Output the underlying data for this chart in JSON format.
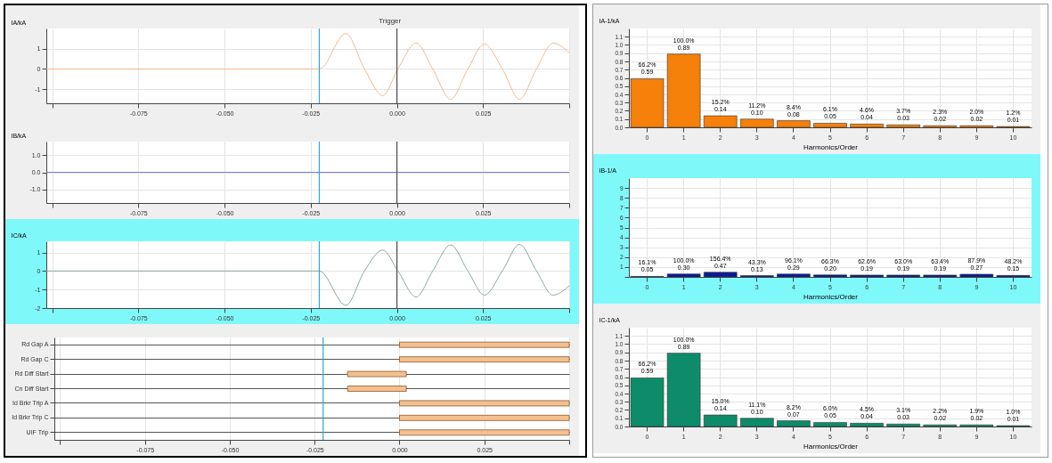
{
  "chart_data": [
    {
      "type": "line",
      "ylabel": "IA/kA",
      "color": "#f5b88a",
      "grid": true,
      "x": [
        -0.1017,
        -0.0225,
        -0.0148,
        -0.0094,
        -0.0041,
        0.0003,
        0.0056,
        0.0104,
        0.0156,
        0.0206,
        0.0254,
        0.0306,
        0.0356,
        0.0405,
        0.0453,
        0.05
      ],
      "values": [
        0,
        0,
        1.75,
        0,
        -1.32,
        0,
        1.28,
        0,
        -1.5,
        0,
        1.23,
        0,
        -1.5,
        0,
        1.28,
        0.8
      ],
      "xlim": [
        -0.1017,
        0.05
      ],
      "xticks": [
        {
          "value": -0.1,
          "label": null
        },
        {
          "value": -0.075,
          "label": "-0.075"
        },
        {
          "value": -0.05,
          "label": "-0.050"
        },
        {
          "value": -0.025,
          "label": "-0.025"
        },
        {
          "value": 0,
          "label": "0.000"
        },
        {
          "value": 0.025,
          "label": "0.025"
        },
        {
          "value": 0.05,
          "label": null
        }
      ],
      "ylim": [
        -1.7,
        2.0
      ],
      "yticks": [
        1,
        0,
        -1
      ],
      "ref_lines": [
        {
          "axis": "x",
          "value": -0.0225,
          "color": "#2aa8d8"
        },
        {
          "axis": "x",
          "value": 0,
          "color": "#555555"
        }
      ],
      "annotations": [
        "Trigger"
      ]
    },
    {
      "type": "line",
      "ylabel": "IB/kA",
      "color": "#7b7bdb",
      "grid": true,
      "x": [
        -0.1017,
        0.05
      ],
      "values": [
        0,
        0
      ],
      "xlim": [
        -0.1017,
        0.05
      ],
      "xticks": [
        {
          "value": -0.1,
          "label": null
        },
        {
          "value": -0.075,
          "label": "-0.075"
        },
        {
          "value": -0.05,
          "label": "-0.050"
        },
        {
          "value": -0.025,
          "label": "-0.025"
        },
        {
          "value": 0,
          "label": "0.000"
        },
        {
          "value": 0.025,
          "label": "0.025"
        },
        {
          "value": 0.05,
          "label": null
        }
      ],
      "ylim": [
        -1.8,
        1.8
      ],
      "yticks": [
        {
          "value": 1,
          "label": "1.0"
        },
        {
          "value": 0,
          "label": "0.0"
        },
        {
          "value": -1,
          "label": "-1.0"
        }
      ],
      "ref_lines": [
        {
          "axis": "x",
          "value": -0.0225,
          "color": "#2aa8d8"
        },
        {
          "axis": "x",
          "value": 0,
          "color": "#555555"
        }
      ]
    },
    {
      "type": "line",
      "ylabel": "IC/kA",
      "color": "#8aa8a0",
      "grid": true,
      "x": [
        -0.1017,
        -0.0225,
        -0.0148,
        -0.0094,
        -0.0041,
        0.0003,
        0.0056,
        0.0104,
        0.0156,
        0.0206,
        0.0254,
        0.0306,
        0.0356,
        0.0405,
        0.0453,
        0.05
      ],
      "values": [
        0,
        0,
        -1.85,
        0,
        1.13,
        0,
        -1.4,
        0,
        1.4,
        0,
        -1.3,
        0,
        1.43,
        0,
        -1.3,
        -0.8
      ],
      "xlim": [
        -0.1017,
        0.05
      ],
      "xticks": [
        {
          "value": -0.1,
          "label": null
        },
        {
          "value": -0.075,
          "label": "-0.075"
        },
        {
          "value": -0.05,
          "label": "-0.050"
        },
        {
          "value": -0.025,
          "label": "-0.025"
        },
        {
          "value": 0,
          "label": "0.000"
        },
        {
          "value": 0.025,
          "label": "0.025"
        },
        {
          "value": 0.05,
          "label": null
        }
      ],
      "ylim": [
        -2,
        1.6
      ],
      "yticks": [
        1,
        0,
        -1,
        -2
      ],
      "ref_lines": [
        {
          "axis": "x",
          "value": -0.0225,
          "color": "#2aa8d8"
        },
        {
          "axis": "x",
          "value": 0,
          "color": "#555555"
        }
      ]
    },
    {
      "type": "bar",
      "orientation": "horizontal",
      "color": "#f5c08f",
      "grid": true,
      "categories": [
        "Rd Gap A",
        "Rd Gap C",
        "Rd Diff Start",
        "Cn Diff Start",
        "Id Brkr Trip A",
        "Id Brkr Trip C",
        "UIF Trip"
      ],
      "base": [
        0,
        0,
        -0.0153,
        -0.0153,
        0,
        0,
        0
      ],
      "values": [
        0.05,
        0.05,
        0.0173,
        0.0173,
        0.05,
        0.05,
        0.05
      ],
      "xlim": [
        -0.1017,
        0.05
      ],
      "xticks": [
        {
          "value": -0.1,
          "label": null
        },
        {
          "value": -0.075,
          "label": "-0.075"
        },
        {
          "value": -0.05,
          "label": "-0.050"
        },
        {
          "value": -0.025,
          "label": "-0.025"
        },
        {
          "value": 0,
          "label": "0.000"
        },
        {
          "value": 0.025,
          "label": "0.025"
        },
        {
          "value": 0.05,
          "label": null
        }
      ],
      "ref_lines": [
        {
          "axis": "x",
          "value": -0.0225,
          "color": "#2aa8d8"
        }
      ]
    },
    {
      "type": "bar",
      "ylabel": "IA-1/kA",
      "xlabel": "Harmonics/Order",
      "color": "#f5800a",
      "grid": true,
      "categories": [
        "0",
        "1",
        "2",
        "3",
        "4",
        "5",
        "6",
        "7",
        "8",
        "9",
        "10"
      ],
      "values": [
        0.59,
        0.89,
        0.14,
        0.1,
        0.08,
        0.05,
        0.04,
        0.03,
        0.02,
        0.02,
        0.01
      ],
      "value_labels": [
        "66.2%\n0.59",
        "100.0%\n0.89",
        "15.2%\n0.14",
        "11.2%\n0.10",
        "8.4%\n0.08",
        "6.1%\n0.05",
        "4.6%\n0.04",
        "3.7%\n0.03",
        "2.3%\n0.02",
        "2.0%\n0.02",
        "1.2%\n0.01"
      ],
      "ylim": [
        0,
        1.2
      ],
      "yticks": [
        {
          "value": 0,
          "label": "0.0"
        },
        {
          "value": 0.1,
          "label": "0.1"
        },
        {
          "value": 0.2,
          "label": "0.2"
        },
        {
          "value": 0.3,
          "label": "0.3"
        },
        {
          "value": 0.4,
          "label": "0.4"
        },
        {
          "value": 0.5,
          "label": "0.5"
        },
        {
          "value": 0.6,
          "label": "0.6"
        },
        {
          "value": 0.7,
          "label": "0.7"
        },
        {
          "value": 0.8,
          "label": "0.8"
        },
        {
          "value": 0.9,
          "label": "0.9"
        },
        {
          "value": 1,
          "label": "1.0"
        },
        {
          "value": 1.1,
          "label": "1.1"
        }
      ]
    },
    {
      "type": "bar",
      "ylabel": "IB-1/A",
      "xlabel": "Harmonics/Order",
      "color": "#0a1a9a",
      "grid": true,
      "categories": [
        "0",
        "1",
        "2",
        "3",
        "4",
        "5",
        "6",
        "7",
        "8",
        "9",
        "10"
      ],
      "values": [
        0.05,
        0.3,
        0.47,
        0.13,
        0.29,
        0.2,
        0.19,
        0.19,
        0.19,
        0.27,
        0.15
      ],
      "value_labels": [
        "16.1%\n0.05",
        "100.0%\n0.30",
        "156.4%\n0.47",
        "43.3%\n0.13",
        "96.1%\n0.29",
        "66.3%\n0.20",
        "62.6%\n0.19",
        "63.0%\n0.19",
        "63.4%\n0.19",
        "87.9%\n0.27",
        "48.2%\n0.15"
      ],
      "ylim": [
        0,
        10
      ],
      "yticks": [
        {
          "value": 0,
          "label": null
        },
        1,
        2,
        3,
        4,
        5,
        6,
        7,
        8,
        9
      ]
    },
    {
      "type": "bar",
      "ylabel": "IC-1/kA",
      "xlabel": "Harmonics/Order",
      "color": "#0e8c6a",
      "grid": true,
      "categories": [
        "0",
        "1",
        "2",
        "3",
        "4",
        "5",
        "6",
        "7",
        "8",
        "9",
        "10"
      ],
      "values": [
        0.59,
        0.89,
        0.14,
        0.1,
        0.07,
        0.05,
        0.04,
        0.03,
        0.02,
        0.02,
        0.01
      ],
      "value_labels": [
        "66.2%\n0.59",
        "100.0%\n0.89",
        "15.0%\n0.14",
        "11.1%\n0.10",
        "8.2%\n0.07",
        "6.0%\n0.05",
        "4.5%\n0.04",
        "3.1%\n0.03",
        "2.2%\n0.02",
        "1.9%\n0.02",
        "1.0%\n0.01"
      ],
      "ylim": [
        0,
        1.2
      ],
      "yticks": [
        {
          "value": 0,
          "label": "0.0"
        },
        {
          "value": 0.1,
          "label": "0.1"
        },
        {
          "value": 0.2,
          "label": "0.2"
        },
        {
          "value": 0.3,
          "label": "0.3"
        },
        {
          "value": 0.4,
          "label": "0.4"
        },
        {
          "value": 0.5,
          "label": "0.5"
        },
        {
          "value": 0.6,
          "label": "0.6"
        },
        {
          "value": 0.7,
          "label": "0.7"
        },
        {
          "value": 0.8,
          "label": "0.8"
        },
        {
          "value": 0.9,
          "label": "0.9"
        },
        {
          "value": 1,
          "label": "1.0"
        },
        {
          "value": 1.1,
          "label": "1.1"
        }
      ]
    }
  ]
}
